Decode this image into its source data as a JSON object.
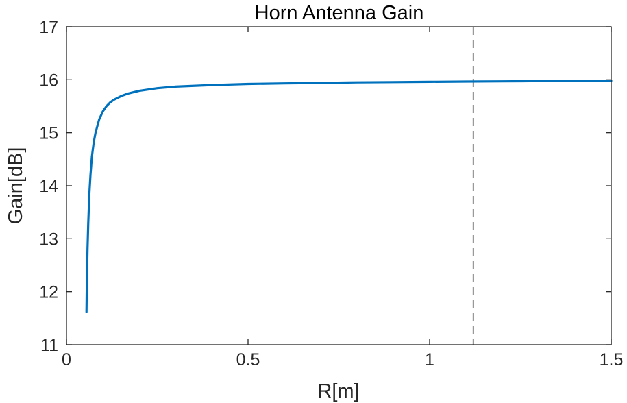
{
  "chart_data": {
    "type": "line",
    "title": "Horn Antenna Gain",
    "xlabel": "R[m]",
    "ylabel": "Gain[dB]",
    "xlim": [
      0,
      1.5
    ],
    "ylim": [
      11,
      17
    ],
    "xticks": [
      0,
      0.5,
      1,
      1.5
    ],
    "xtick_labels": [
      "0",
      "0.5",
      "1",
      "1.5"
    ],
    "yticks": [
      11,
      12,
      13,
      14,
      15,
      16,
      17
    ],
    "ytick_labels": [
      "11",
      "12",
      "13",
      "14",
      "15",
      "16",
      "17"
    ],
    "grid": false,
    "series": [
      {
        "color": "#0072BD",
        "x": [
          0.055,
          0.056,
          0.058,
          0.06,
          0.063,
          0.066,
          0.07,
          0.075,
          0.08,
          0.09,
          0.1,
          0.11,
          0.12,
          0.13,
          0.15,
          0.17,
          0.2,
          0.25,
          0.3,
          0.4,
          0.5,
          0.6,
          0.7,
          0.8,
          0.9,
          1.0,
          1.1,
          1.2,
          1.3,
          1.4,
          1.5
        ],
        "y": [
          11.62,
          12.15,
          12.8,
          13.3,
          13.85,
          14.2,
          14.55,
          14.82,
          15.0,
          15.25,
          15.4,
          15.5,
          15.57,
          15.62,
          15.69,
          15.74,
          15.79,
          15.84,
          15.87,
          15.9,
          15.92,
          15.93,
          15.94,
          15.95,
          15.955,
          15.96,
          15.965,
          15.97,
          15.975,
          15.978,
          15.98
        ]
      }
    ],
    "reference_lines": [
      {
        "orientation": "vertical",
        "x": 1.12,
        "style": "dashed",
        "color": "#999999"
      }
    ]
  }
}
